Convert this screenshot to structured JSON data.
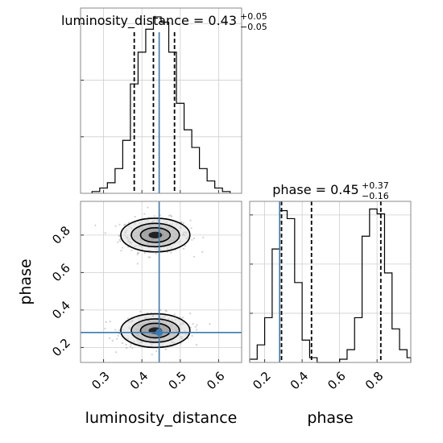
{
  "chart_data": [
    {
      "type": "histogram",
      "panel": "luminosity_distance marginal",
      "title": {
        "param": "luminosity_distance",
        "value": "0.43",
        "plus": "+0.05",
        "minus": "−0.05"
      },
      "xlim": [
        0.24,
        0.66
      ],
      "bin_edges": [
        0.27,
        0.29,
        0.31,
        0.33,
        0.35,
        0.37,
        0.39,
        0.41,
        0.43,
        0.45,
        0.47,
        0.49,
        0.51,
        0.53,
        0.55,
        0.57,
        0.59,
        0.61,
        0.63
      ],
      "density": [
        0.01,
        0.03,
        0.06,
        0.14,
        0.3,
        0.62,
        0.8,
        0.93,
        1.0,
        0.97,
        0.8,
        0.51,
        0.36,
        0.26,
        0.14,
        0.07,
        0.03,
        0.01
      ],
      "quantiles": [
        0.38,
        0.43,
        0.485
      ],
      "truth": 0.445,
      "grid": true,
      "hist_color": "#000000",
      "truth_color": "#3b7ab0"
    },
    {
      "type": "scatter",
      "panel": "luminosity_distance vs phase",
      "xlabel": "luminosity_distance",
      "ylabel": "phase",
      "xlim": [
        0.24,
        0.66
      ],
      "ylim": [
        0.12,
        0.98
      ],
      "xticks": [
        "0.3",
        "0.4",
        "0.5",
        "0.6"
      ],
      "yticks": [
        "0.2",
        "0.4",
        "0.6",
        "0.8"
      ],
      "clusters": [
        {
          "x": 0.435,
          "y": 0.8,
          "sx": 0.045,
          "sy": 0.045
        },
        {
          "x": 0.435,
          "y": 0.29,
          "sx": 0.045,
          "sy": 0.045
        }
      ],
      "contour_levels": [
        0.39,
        0.86,
        1.39,
        2.0
      ],
      "truth": {
        "x": 0.445,
        "y": 0.28
      },
      "grid": true,
      "point_color": "#9a9a9a",
      "truth_color": "#3b7ab0"
    },
    {
      "type": "histogram",
      "panel": "phase marginal",
      "title": {
        "param": "phase",
        "value": "0.45",
        "plus": "+0.37",
        "minus": "−0.16"
      },
      "xlabel": "phase",
      "xlim": [
        0.12,
        0.98
      ],
      "xticks": [
        "0.2",
        "0.4",
        "0.6",
        "0.8"
      ],
      "bin_edges": [
        0.12,
        0.16,
        0.2,
        0.24,
        0.28,
        0.32,
        0.36,
        0.4,
        0.44,
        0.48,
        0.52,
        0.56,
        0.6,
        0.64,
        0.68,
        0.72,
        0.76,
        0.8,
        0.84,
        0.88,
        0.92,
        0.96,
        0.98
      ],
      "density": [
        0.02,
        0.11,
        0.28,
        0.71,
        0.95,
        0.9,
        0.5,
        0.14,
        0.03,
        0.0,
        0.0,
        0.0,
        0.02,
        0.08,
        0.28,
        0.79,
        0.96,
        0.93,
        0.56,
        0.21,
        0.08,
        0.03
      ],
      "quantiles": [
        0.29,
        0.45,
        0.82
      ],
      "truth": 0.28,
      "grid": true,
      "hist_color": "#000000",
      "truth_color": "#3b7ab0"
    }
  ]
}
